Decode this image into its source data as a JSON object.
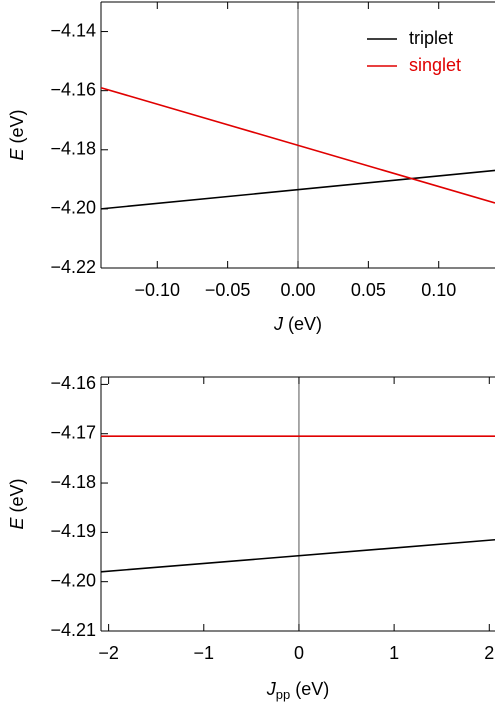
{
  "chart_data": [
    {
      "type": "line",
      "x_label": {
        "symbol": "J",
        "unit": "(eV)"
      },
      "y_label": {
        "symbol": "E",
        "unit": "(eV)"
      },
      "xlim": [
        -0.14,
        0.14
      ],
      "ylim": [
        -4.22,
        -4.13
      ],
      "xticks": [
        {
          "value": -0.1,
          "label": "−0.10"
        },
        {
          "value": -0.05,
          "label": "−0.05"
        },
        {
          "value": 0,
          "label": "0.00"
        },
        {
          "value": 0.05,
          "label": "0.05"
        },
        {
          "value": 0.1,
          "label": "0.10"
        }
      ],
      "yticks": [
        {
          "value": -4.22,
          "label": "−4.22"
        },
        {
          "value": -4.2,
          "label": "−4.20"
        },
        {
          "value": -4.18,
          "label": "−4.18"
        },
        {
          "value": -4.16,
          "label": "−4.16"
        },
        {
          "value": -4.14,
          "label": "−4.14"
        }
      ],
      "legend": "upper right",
      "series": [
        {
          "name": "triplet",
          "color": "#000000",
          "x": [
            -0.14,
            0.14
          ],
          "values": [
            -4.2,
            -4.187
          ]
        },
        {
          "name": "singlet",
          "color": "#e00000",
          "x": [
            -0.14,
            0.14
          ],
          "values": [
            -4.159,
            -4.198
          ]
        }
      ]
    },
    {
      "type": "line",
      "x_label": {
        "symbol": "J",
        "subscript": "pp",
        "unit": "(eV)"
      },
      "y_label": {
        "symbol": "E",
        "unit": "(eV)"
      },
      "xlim": [
        -2.08,
        2.06
      ],
      "ylim": [
        -4.21,
        -4.1585
      ],
      "xticks": [
        {
          "value": -2,
          "label": "−2"
        },
        {
          "value": -1,
          "label": "−1"
        },
        0,
        1,
        2
      ],
      "yticks": [
        {
          "value": -4.21,
          "label": "−4.21"
        },
        {
          "value": -4.2,
          "label": "−4.20"
        },
        {
          "value": -4.19,
          "label": "−4.19"
        },
        {
          "value": -4.18,
          "label": "−4.18"
        },
        {
          "value": -4.17,
          "label": "−4.17"
        },
        {
          "value": -4.16,
          "label": "−4.16"
        }
      ],
      "series": [
        {
          "name": "triplet",
          "color": "#000000",
          "x": [
            -2.08,
            2.06
          ],
          "values": [
            -4.198,
            -4.1915
          ]
        },
        {
          "name": "singlet",
          "color": "#e00000",
          "x": [
            -2.08,
            2.06
          ],
          "values": [
            -4.1705,
            -4.1705
          ]
        }
      ]
    }
  ]
}
